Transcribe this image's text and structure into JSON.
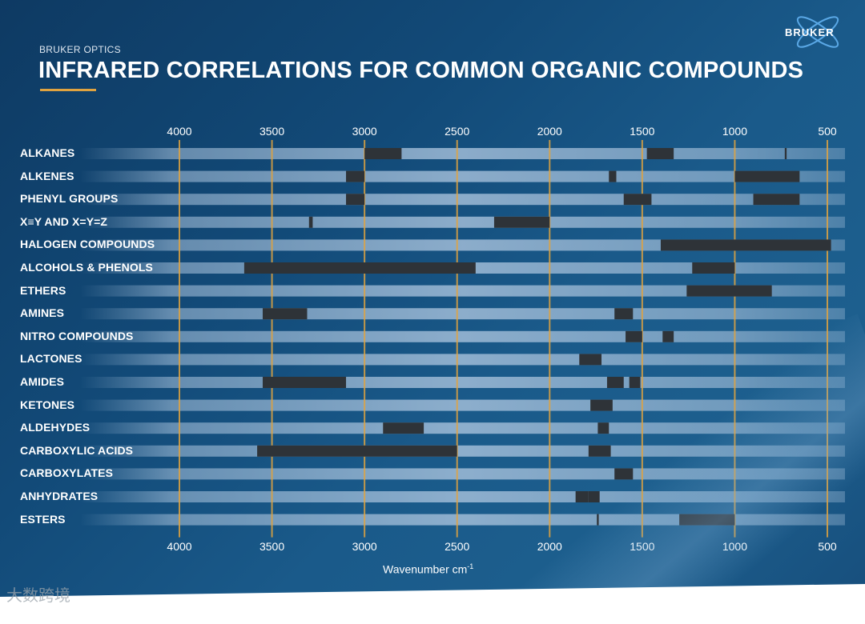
{
  "brand": "BRUKER OPTICS",
  "title": "INFRARED CORRELATIONS FOR COMMON ORGANIC COMPOUNDS",
  "logo_text": "BRUKER",
  "watermark": "大数跨境",
  "colors": {
    "accent": "#e0a340",
    "gridline": "#e0a340",
    "band": "#2e3338",
    "row": "#a9c3dd"
  },
  "chart_data": {
    "type": "bar",
    "orientation": "horizontal-ranges",
    "xlabel": "Wavenumber cm",
    "xlabel_superscript": "-1",
    "xlim": [
      4000,
      500
    ],
    "x_reversed": true,
    "ticks": [
      "4000",
      "3500",
      "3000",
      "2500",
      "2000",
      "1500",
      "1000",
      "500"
    ],
    "tick_values": [
      4000,
      3500,
      3000,
      2500,
      2000,
      1500,
      1000,
      500
    ],
    "grid": true,
    "categories": [
      {
        "label": "ALKANES",
        "bands": [
          [
            3000,
            2800
          ],
          [
            1475,
            1330
          ],
          [
            730,
            720
          ]
        ]
      },
      {
        "label": "ALKENES",
        "bands": [
          [
            3100,
            3000
          ],
          [
            1680,
            1640
          ],
          [
            1000,
            650
          ]
        ]
      },
      {
        "label": "PHENYL GROUPS",
        "bands": [
          [
            3100,
            3000
          ],
          [
            1600,
            1450
          ],
          [
            900,
            650
          ]
        ]
      },
      {
        "label": "X≡Y AND X=Y=Z",
        "bands": [
          [
            3300,
            3280
          ],
          [
            2300,
            2000
          ]
        ]
      },
      {
        "label": "HALOGEN COMPOUNDS",
        "bands": [
          [
            1400,
            480
          ]
        ]
      },
      {
        "label": "ALCOHOLS & PHENOLS",
        "bands": [
          [
            3650,
            2400
          ],
          [
            1230,
            1000
          ]
        ]
      },
      {
        "label": "ETHERS",
        "bands": [
          [
            1260,
            800
          ]
        ]
      },
      {
        "label": "AMINES",
        "bands": [
          [
            3550,
            3310
          ],
          [
            1650,
            1550
          ]
        ]
      },
      {
        "label": "NITRO COMPOUNDS",
        "bands": [
          [
            1590,
            1500
          ],
          [
            1390,
            1330
          ]
        ]
      },
      {
        "label": "LACTONES",
        "bands": [
          [
            1840,
            1720
          ]
        ]
      },
      {
        "label": "AMIDES",
        "bands": [
          [
            3550,
            3100
          ],
          [
            1690,
            1600
          ],
          [
            1570,
            1510
          ]
        ]
      },
      {
        "label": "KETONES",
        "bands": [
          [
            1780,
            1660
          ]
        ]
      },
      {
        "label": "ALDEHYDES",
        "bands": [
          [
            2900,
            2680
          ],
          [
            1740,
            1680
          ]
        ]
      },
      {
        "label": "CARBOXYLIC ACIDS",
        "bands": [
          [
            3580,
            2500
          ],
          [
            1790,
            1670
          ]
        ]
      },
      {
        "label": "CARBOXYLATES",
        "bands": [
          [
            1650,
            1550
          ]
        ]
      },
      {
        "label": "ANHYDRATES",
        "bands": [
          [
            1860,
            1790
          ],
          [
            1790,
            1730
          ]
        ]
      },
      {
        "label": "ESTERS",
        "bands": [
          [
            1745,
            1735
          ],
          [
            1300,
            1000
          ]
        ]
      }
    ]
  }
}
